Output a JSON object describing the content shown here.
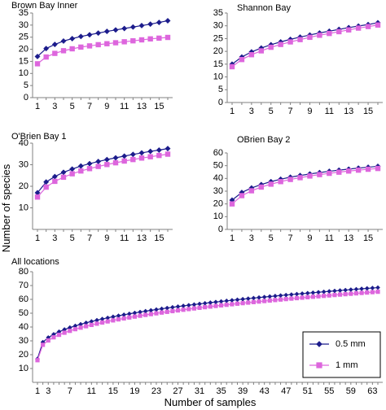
{
  "figure": {
    "ylabel": "Number of species",
    "xlabel": "Number of samples"
  },
  "colors": {
    "series_0_5mm": "#1c1c8c",
    "series_1mm": "#dd66dd"
  },
  "legend": [
    {
      "name": "0.5 mm",
      "marker": "diamond"
    },
    {
      "name": "1 mm",
      "marker": "square"
    }
  ],
  "chart_data": [
    {
      "type": "line",
      "title": "Brown Bay Inner",
      "x": [
        1,
        2,
        3,
        4,
        5,
        6,
        7,
        8,
        9,
        10,
        11,
        12,
        13,
        14,
        15,
        16
      ],
      "xticks": [
        1,
        3,
        5,
        7,
        9,
        11,
        13,
        15
      ],
      "ylim": [
        0,
        35
      ],
      "yticks": [
        0,
        5,
        10,
        15,
        20,
        25,
        30,
        35
      ],
      "series": [
        {
          "name": "0.5 mm",
          "values": [
            17,
            20.3,
            22,
            23.4,
            24.4,
            25.3,
            26,
            26.7,
            27.4,
            28,
            28.6,
            29.2,
            29.8,
            30.4,
            31.1,
            31.8
          ]
        },
        {
          "name": "1 mm",
          "values": [
            14,
            16.8,
            18.3,
            19.4,
            20.2,
            20.9,
            21.4,
            21.9,
            22.3,
            22.7,
            23.1,
            23.5,
            23.9,
            24.3,
            24.6,
            24.9
          ]
        }
      ]
    },
    {
      "type": "line",
      "title": "Shannon Bay",
      "x": [
        1,
        2,
        3,
        4,
        5,
        6,
        7,
        8,
        9,
        10,
        11,
        12,
        13,
        14,
        15,
        16
      ],
      "xticks": [
        1,
        3,
        5,
        7,
        9,
        11,
        13,
        15
      ],
      "ylim": [
        0,
        35
      ],
      "yticks": [
        0,
        5,
        10,
        15,
        20,
        25,
        30,
        35
      ],
      "series": [
        {
          "name": "0.5 mm",
          "values": [
            15,
            17.8,
            19.8,
            21.3,
            22.6,
            23.7,
            24.7,
            25.6,
            26.4,
            27.2,
            27.9,
            28.6,
            29.3,
            29.9,
            30.5,
            31.2
          ]
        },
        {
          "name": "1 mm",
          "values": [
            14,
            16.8,
            18.7,
            20.2,
            21.6,
            22.7,
            23.7,
            24.6,
            25.5,
            26.3,
            27,
            27.7,
            28.4,
            29.1,
            29.7,
            30.3
          ]
        }
      ]
    },
    {
      "type": "line",
      "title": "O'Brien Bay 1",
      "x": [
        1,
        2,
        3,
        4,
        5,
        6,
        7,
        8,
        9,
        10,
        11,
        12,
        13,
        14,
        15,
        16
      ],
      "xticks": [
        1,
        3,
        5,
        7,
        9,
        11,
        13,
        15
      ],
      "ylim": [
        0,
        40
      ],
      "yticks": [
        10,
        20,
        30,
        40
      ],
      "series": [
        {
          "name": "0.5 mm",
          "values": [
            17,
            22,
            24.5,
            26.5,
            28,
            29.4,
            30.5,
            31.5,
            32.4,
            33.2,
            34,
            34.8,
            35.5,
            36.2,
            36.8,
            37.5
          ]
        },
        {
          "name": "1 mm",
          "values": [
            15,
            19.6,
            22.3,
            24.2,
            25.8,
            27.1,
            28.2,
            29.2,
            30.1,
            30.9,
            31.7,
            32.4,
            33.1,
            33.7,
            34.3,
            34.9
          ]
        }
      ]
    },
    {
      "type": "line",
      "title": "OBrien Bay 2",
      "x": [
        1,
        2,
        3,
        4,
        5,
        6,
        7,
        8,
        9,
        10,
        11,
        12,
        13,
        14,
        15,
        16
      ],
      "xticks": [
        1,
        3,
        5,
        7,
        9,
        11,
        13,
        15
      ],
      "ylim": [
        0,
        60
      ],
      "yticks": [
        0,
        10,
        20,
        30,
        40,
        50,
        60
      ],
      "series": [
        {
          "name": "0.5 mm",
          "values": [
            23,
            29,
            32.5,
            35.2,
            37.5,
            39.4,
            41,
            42.3,
            43.5,
            44.6,
            45.6,
            46.5,
            47.3,
            48.1,
            48.8,
            49.5
          ]
        },
        {
          "name": "1 mm",
          "values": [
            20,
            26.5,
            30.3,
            33.2,
            35.5,
            37.5,
            39.2,
            40.6,
            41.9,
            43,
            44,
            44.9,
            45.8,
            46.5,
            47.2,
            47.8
          ]
        }
      ]
    },
    {
      "type": "line",
      "title": "All locations",
      "x_count": 64,
      "xticks": [
        1,
        3,
        7,
        11,
        15,
        19,
        23,
        27,
        31,
        35,
        39,
        43,
        47,
        51,
        55,
        59,
        63
      ],
      "ylim": [
        0,
        80
      ],
      "yticks": [
        10,
        20,
        30,
        40,
        50,
        60,
        70,
        80
      ],
      "series": [
        {
          "name": "0.5 mm",
          "start": 17,
          "end": 68.5,
          "curve_exponent": 0.35
        },
        {
          "name": "1 mm",
          "start": 16,
          "end": 65.5,
          "curve_exponent": 0.36
        }
      ]
    }
  ]
}
